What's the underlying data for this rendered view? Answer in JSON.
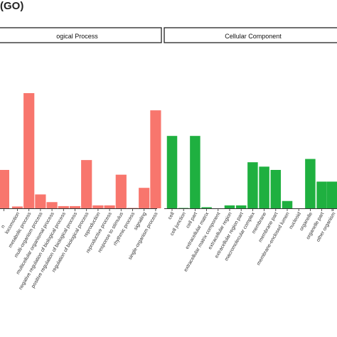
{
  "figure": {
    "title": "(GO)"
  },
  "chart_data": [
    {
      "type": "bar",
      "panel_title": "ogical Process",
      "color": "#f8766d",
      "categories": [
        "locomotion",
        "metabolic process",
        "multi-organism process",
        "multicellular organismal process",
        "negative regulation of biological process",
        "positive regulation of biological process",
        "regulation of biological process",
        "reproduction",
        "reproductive process",
        "response to stimulus",
        "rhythmic process",
        "signaling",
        "single-organism process"
      ],
      "values": [
        0.5,
        31.5,
        3.8,
        1.7,
        0.6,
        0.6,
        13.2,
        0.8,
        0.8,
        9.2,
        0.1,
        5.6,
        26.8
      ],
      "partial_bar": {
        "value": 10.5
      },
      "partial_label": "n",
      "ylim": [
        0,
        35
      ],
      "xlabel": "",
      "ylabel": ""
    },
    {
      "type": "bar",
      "panel_title": "Cellular Component",
      "color": "#1fb040",
      "categories": [
        "cell",
        "cell junction",
        "cell part",
        "extracellular matrix",
        "extracellular matrix component",
        "extracellular region",
        "extracellular region part",
        "macromolecular complex",
        "membrane",
        "membrane part",
        "membrane-enclosed lumen",
        "nucleoid",
        "organelle",
        "organelle part",
        "other organism"
      ],
      "values": [
        19.8,
        0.1,
        19.8,
        0.3,
        0,
        0.8,
        0.8,
        12.6,
        11.4,
        10.5,
        2.0,
        0,
        13.5,
        7.3,
        0.5
      ],
      "partial_bar": {
        "value": 7.3
      },
      "ylim": [
        0,
        35
      ],
      "xlabel": "",
      "ylabel": ""
    }
  ]
}
